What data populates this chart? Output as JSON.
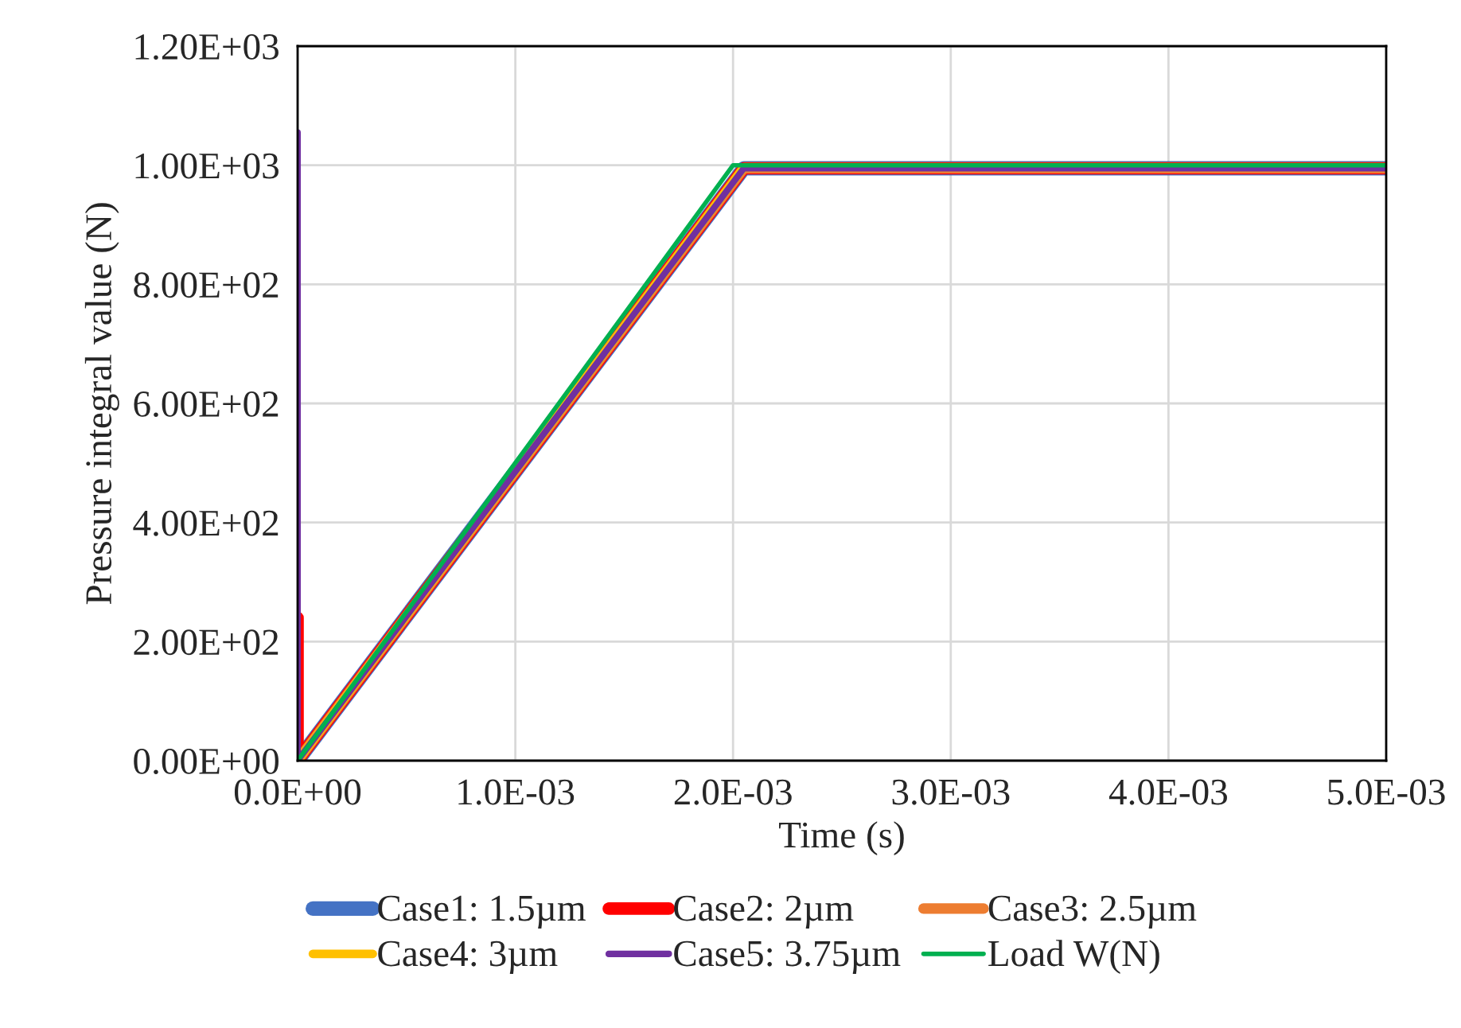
{
  "chart_data": {
    "type": "line",
    "xlabel": "Time (s)",
    "ylabel": "Pressure integral value (N)",
    "xlim": [
      0,
      0.005
    ],
    "ylim": [
      0,
      1200
    ],
    "xticks": [
      {
        "value": 0,
        "label": "0.0E+00"
      },
      {
        "value": 0.001,
        "label": "1.0E-03"
      },
      {
        "value": 0.002,
        "label": "2.0E-03"
      },
      {
        "value": 0.003,
        "label": "3.0E-03"
      },
      {
        "value": 0.004,
        "label": "4.0E-03"
      },
      {
        "value": 0.005,
        "label": "5.0E-03"
      }
    ],
    "yticks": [
      {
        "value": 0,
        "label": "0.00E+00"
      },
      {
        "value": 200,
        "label": "2.00E+02"
      },
      {
        "value": 400,
        "label": "4.00E+02"
      },
      {
        "value": 600,
        "label": "6.00E+02"
      },
      {
        "value": 800,
        "label": "8.00E+02"
      },
      {
        "value": 1000,
        "label": "1.00E+03"
      },
      {
        "value": 1200,
        "label": "1.20E+03"
      }
    ],
    "grid": true,
    "legend": "bottom",
    "marker": "none",
    "line_style": "solid",
    "series": [
      {
        "name": "Case1: 1.5µm",
        "color": "#4472c4",
        "x": [
          0,
          0,
          0.00205,
          0.005
        ],
        "values": [
          10,
          0,
          995,
          995
        ]
      },
      {
        "name": "Case2: 2µm",
        "color": "#ff0000",
        "x": [
          0,
          0,
          0.00205,
          0.005
        ],
        "values": [
          240,
          0,
          995,
          995
        ]
      },
      {
        "name": "Case3: 2.5µm",
        "color": "#ed7d31",
        "x": [
          0,
          0,
          0.00205,
          0.005
        ],
        "values": [
          10,
          0,
          995,
          995
        ]
      },
      {
        "name": "Case4: 3µm",
        "color": "#ffc000",
        "x": [
          0,
          0,
          0.00205,
          0.005
        ],
        "values": [
          10,
          0,
          997,
          997
        ]
      },
      {
        "name": "Case5: 3.75µm",
        "color": "#7030a0",
        "x": [
          0,
          0,
          0.00205,
          0.005
        ],
        "values": [
          1055,
          0,
          995,
          995
        ]
      },
      {
        "name": "Load W(N)",
        "color": "#00b050",
        "x": [
          0,
          0.002,
          0.005
        ],
        "values": [
          0,
          1000,
          1000
        ]
      }
    ]
  }
}
